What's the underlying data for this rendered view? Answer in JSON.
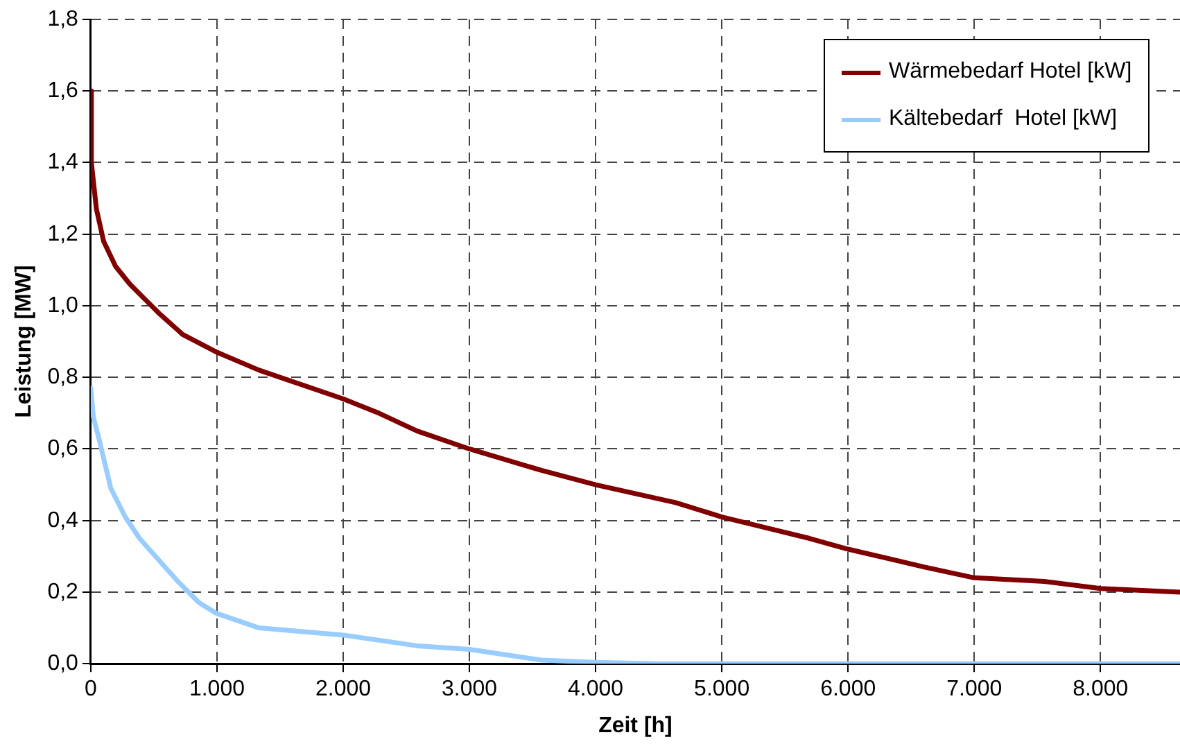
{
  "chart_data": {
    "type": "line",
    "xlabel": "Zeit [h]",
    "ylabel": "Leistung [MW]",
    "xlim": [
      0,
      8630
    ],
    "ylim": [
      0,
      1.8
    ],
    "xticks": [
      0,
      {
        "value": 1000,
        "label": "1.000"
      },
      {
        "value": 2000,
        "label": "2.000"
      },
      {
        "value": 3000,
        "label": "3.000"
      },
      {
        "value": 4000,
        "label": "4.000"
      },
      {
        "value": 5000,
        "label": "5.000"
      },
      {
        "value": 6000,
        "label": "6.000"
      },
      {
        "value": 7000,
        "label": "7.000"
      },
      {
        "value": 8000,
        "label": "8.000"
      }
    ],
    "yticks": [
      {
        "value": 0,
        "label": "0,0"
      },
      {
        "value": 0.2,
        "label": "0,2"
      },
      {
        "value": 0.4,
        "label": "0,4"
      },
      {
        "value": 0.6,
        "label": "0,6"
      },
      {
        "value": 0.8,
        "label": "0,8"
      },
      {
        "value": 1,
        "label": "1,0"
      },
      {
        "value": 1.2,
        "label": "1,2"
      },
      {
        "value": 1.4,
        "label": "1,4"
      },
      {
        "value": 1.6,
        "label": "1,6"
      },
      {
        "value": 1.8,
        "label": "1,8"
      }
    ],
    "grid": true,
    "legend": "top right",
    "marker": "none",
    "line_style": "solid",
    "series": [
      {
        "name": "Wärmebedarf Hotel [kW]",
        "color": "#800000",
        "x": [
          0,
          5,
          45,
          102,
          197,
          311,
          424,
          538,
          728,
          1000,
          1334,
          2000,
          2282,
          2586,
          3000,
          3572,
          4000,
          4634,
          5000,
          5695,
          6000,
          6606,
          7000,
          7554,
          8000,
          8627
        ],
        "values": [
          1.6,
          1.4,
          1.27,
          1.18,
          1.11,
          1.06,
          1.02,
          0.98,
          0.92,
          0.87,
          0.82,
          0.74,
          0.7,
          0.65,
          0.6,
          0.54,
          0.5,
          0.45,
          0.41,
          0.35,
          0.32,
          0.27,
          0.24,
          0.23,
          0.21,
          0.2
        ]
      },
      {
        "name": "Kältebedarf  Hotel [kW]",
        "color": "#99ccff",
        "x": [
          0,
          20,
          64,
          159,
          273,
          387,
          538,
          690,
          860,
          1000,
          1334,
          2000,
          2586,
          3000,
          3572,
          4000,
          4500,
          5000,
          6000,
          7000,
          8000,
          8627
        ],
        "values": [
          0.77,
          0.69,
          0.63,
          0.49,
          0.41,
          0.35,
          0.29,
          0.23,
          0.17,
          0.14,
          0.1,
          0.08,
          0.05,
          0.04,
          0.01,
          0.004,
          0,
          0,
          0,
          0,
          0,
          0
        ]
      }
    ]
  }
}
